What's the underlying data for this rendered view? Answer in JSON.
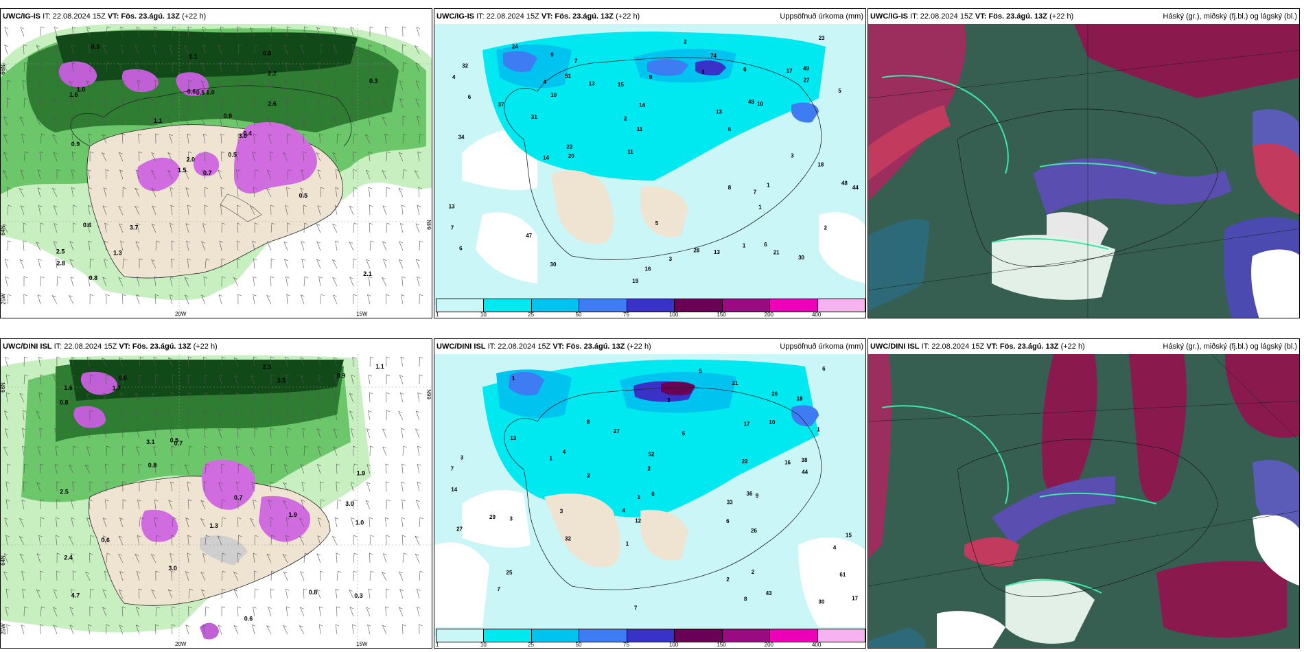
{
  "panels": [
    {
      "id": "p1",
      "model": "UWC/IG-IS",
      "it": "IT: 22.08.2024 15Z",
      "vt": "VT: Fös. 23.ágú. 13Z",
      "lead": "(+22 h)",
      "right": ""
    },
    {
      "id": "p2",
      "model": "UWC/IG-IS",
      "it": "IT: 22.08.2024 15Z",
      "vt": "VT: Fös. 23.ágú. 13Z",
      "lead": "(+22 h)",
      "right": "Uppsöfnuð úrkoma (mm)"
    },
    {
      "id": "p3",
      "model": "UWC/IG-IS",
      "it": "IT: 22.08.2024 15Z",
      "vt": "VT: Fös. 23.ágú. 13Z",
      "lead": "(+22 h)",
      "right": "Háský (gr.), miðský (fj.bl.) og lágský (bl.)"
    },
    {
      "id": "p4",
      "model": "UWC/DINI ISL",
      "it": "IT: 22.08.2024 15Z",
      "vt": "VT: Fös. 23.ágú. 13Z",
      "lead": "(+22 h)",
      "right": ""
    },
    {
      "id": "p5",
      "model": "UWC/DINI ISL",
      "it": "IT: 22.08.2024 15Z",
      "vt": "VT: Fös. 23.ágú. 13Z",
      "lead": "(+22 h)",
      "right": "Uppsöfnuð úrkoma (mm)"
    },
    {
      "id": "p6",
      "model": "UWC/DINI ISL",
      "it": "IT: 22.08.2024 15Z",
      "vt": "VT: Fös. 23.ágú. 13Z",
      "lead": "(+22 h)",
      "right": "Háský (gr.), miðský (fj.bl.) og lágský (bl.)"
    }
  ],
  "colorbar": {
    "ticks": [
      "1",
      "10",
      "25",
      "50",
      "75",
      "100",
      "150",
      "200",
      "400"
    ],
    "colors": [
      "#cbf6f8",
      "#00e9f0",
      "#00c3ef",
      "#3d7cf2",
      "#3832c8",
      "#6b0057",
      "#9a0a80",
      "#ec00b8",
      "#f7b3f0"
    ]
  },
  "axis_labels": {
    "lat66": "66N",
    "lat64": "64N",
    "lon25": "25W",
    "lon20": "20W",
    "lon15": "15W"
  },
  "precip_top": [
    "6",
    "10",
    "6",
    "16",
    "17",
    "19",
    "8",
    "20",
    "49",
    "44",
    "48",
    "51",
    "48",
    "47",
    "34",
    "30",
    "22",
    "15",
    "30",
    "28",
    "21",
    "18",
    "11",
    "5",
    "6",
    "31",
    "27",
    "74",
    "24",
    "14",
    "13",
    "13",
    "23",
    "37",
    "32",
    "9",
    "13",
    "3",
    "2",
    "7",
    "10",
    "4",
    "2",
    "6",
    "3",
    "5",
    "4",
    "3",
    "2",
    "1",
    "14",
    "13",
    "11",
    "7",
    "9",
    "7",
    "6",
    "1",
    "1"
  ],
  "precip_bottom": [
    "6",
    "15",
    "16",
    "4",
    "2",
    "10",
    "38",
    "52",
    "61",
    "43",
    "36",
    "33",
    "27",
    "26",
    "32",
    "30",
    "18",
    "29",
    "26",
    "27",
    "12",
    "14",
    "22",
    "21",
    "44",
    "25",
    "13",
    "17",
    "17",
    "3",
    "1",
    "5",
    "3",
    "2",
    "2",
    "7",
    "5",
    "6",
    "9",
    "8",
    "4",
    "3",
    "3",
    "7",
    "7",
    "8",
    "6",
    "4",
    "1",
    "1",
    "1",
    "1",
    "2"
  ],
  "cloud_values_top": [
    "0.7",
    "1.6",
    "2.0",
    "2.5",
    "3.0",
    "3.7",
    "0.8",
    "1.0",
    "2.2",
    "0.5",
    "0.3",
    "2.1",
    "0.9",
    "0.3",
    "1.5",
    "2.6",
    "0.8",
    "0.6",
    "0.9",
    "0.6",
    "1.1",
    "2.8",
    "1.3",
    "0.5",
    "0.4",
    "0.5",
    "1.0",
    "1.1"
  ],
  "cloud_values_bottom": [
    "1.9",
    "3.0",
    "4.7",
    "0.6",
    "0.7",
    "0.8",
    "2.4",
    "3.5",
    "3.1",
    "0.6",
    "0.8",
    "2.5",
    "1.6",
    "0.3",
    "3.0",
    "1.9",
    "1.3",
    "0.7",
    "0.5",
    "0.6",
    "1.1",
    "0.9",
    "0.8",
    "1.0",
    "2.3",
    "1.7"
  ]
}
